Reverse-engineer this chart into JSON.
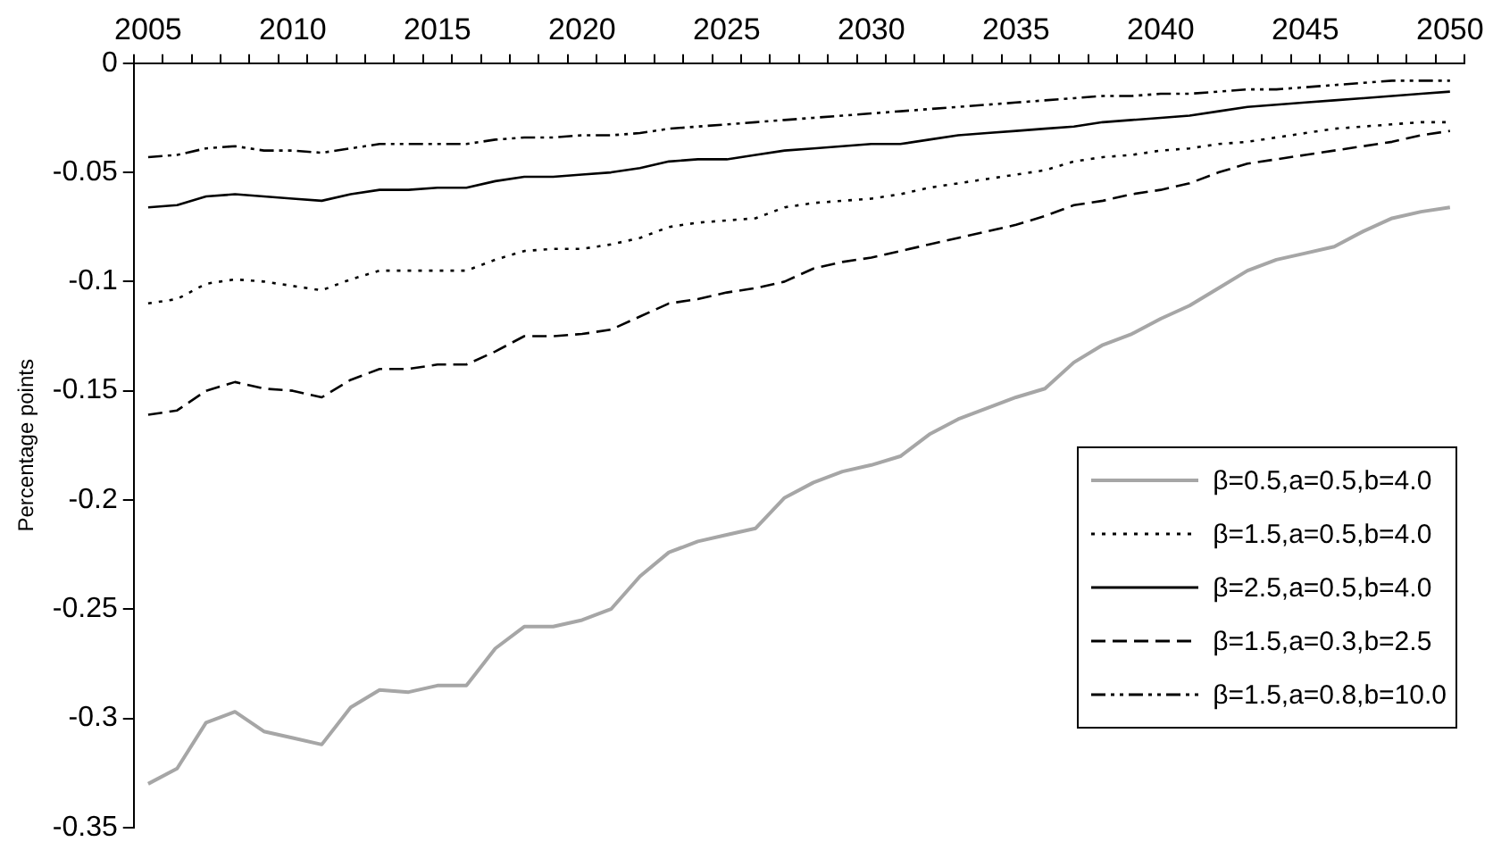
{
  "chart_data": {
    "type": "line",
    "ylabel": "Percentage points",
    "categories": [
      "2005",
      null,
      null,
      null,
      null,
      "2010",
      null,
      null,
      null,
      null,
      "2015",
      null,
      null,
      null,
      null,
      "2020",
      null,
      null,
      null,
      null,
      "2025",
      null,
      null,
      null,
      null,
      "2030",
      null,
      null,
      null,
      null,
      "2035",
      null,
      null,
      null,
      null,
      "2040",
      null,
      null,
      null,
      null,
      "2045",
      null,
      null,
      null,
      null,
      "2050"
    ],
    "ylim": [
      -0.35,
      0
    ],
    "yticks": [
      0,
      -0.05,
      -0.1,
      -0.15,
      -0.2,
      -0.25,
      -0.3,
      -0.35
    ],
    "grid": false,
    "legend": "right",
    "marker": "none",
    "series": [
      {
        "name": "β=0.5,a=0.5,b=4.0",
        "color": "#a6a6a6",
        "line_style": "solid",
        "values": [
          -0.33,
          -0.323,
          -0.302,
          -0.297,
          -0.306,
          -0.309,
          -0.312,
          -0.295,
          -0.287,
          -0.288,
          -0.285,
          -0.285,
          -0.268,
          -0.258,
          -0.258,
          -0.255,
          -0.25,
          -0.235,
          -0.224,
          -0.219,
          -0.216,
          -0.213,
          -0.199,
          -0.192,
          -0.187,
          -0.184,
          -0.18,
          -0.17,
          -0.163,
          -0.158,
          -0.153,
          -0.149,
          -0.137,
          -0.129,
          -0.124,
          -0.117,
          -0.111,
          -0.103,
          -0.095,
          -0.09,
          -0.087,
          -0.084,
          -0.077,
          -0.071,
          -0.068,
          -0.066
        ]
      },
      {
        "name": "β=1.5,a=0.5,b=4.0",
        "color": "#000000",
        "line_style": "dotted",
        "values": [
          -0.11,
          -0.108,
          -0.101,
          -0.099,
          -0.1,
          -0.102,
          -0.104,
          -0.099,
          -0.095,
          -0.095,
          -0.095,
          -0.095,
          -0.09,
          -0.086,
          -0.085,
          -0.085,
          -0.083,
          -0.08,
          -0.075,
          -0.073,
          -0.072,
          -0.071,
          -0.066,
          -0.064,
          -0.063,
          -0.062,
          -0.06,
          -0.057,
          -0.055,
          -0.053,
          -0.051,
          -0.049,
          -0.045,
          -0.043,
          -0.042,
          -0.04,
          -0.039,
          -0.037,
          -0.036,
          -0.034,
          -0.032,
          -0.03,
          -0.029,
          -0.028,
          -0.027,
          -0.027
        ]
      },
      {
        "name": "β=2.5,a=0.5,b=4.0",
        "color": "#000000",
        "line_style": "solid",
        "values": [
          -0.066,
          -0.065,
          -0.061,
          -0.06,
          -0.061,
          -0.062,
          -0.063,
          -0.06,
          -0.058,
          -0.058,
          -0.057,
          -0.057,
          -0.054,
          -0.052,
          -0.052,
          -0.051,
          -0.05,
          -0.048,
          -0.045,
          -0.044,
          -0.044,
          -0.042,
          -0.04,
          -0.039,
          -0.038,
          -0.037,
          -0.037,
          -0.035,
          -0.033,
          -0.032,
          -0.031,
          -0.03,
          -0.029,
          -0.027,
          -0.026,
          -0.025,
          -0.024,
          -0.022,
          -0.02,
          -0.019,
          -0.018,
          -0.017,
          -0.016,
          -0.015,
          -0.014,
          -0.013
        ]
      },
      {
        "name": "β=1.5,a=0.3,b=2.5",
        "color": "#000000",
        "line_style": "dashed",
        "values": [
          -0.161,
          -0.159,
          -0.15,
          -0.146,
          -0.149,
          -0.15,
          -0.153,
          -0.145,
          -0.14,
          -0.14,
          -0.138,
          -0.138,
          -0.132,
          -0.125,
          -0.125,
          -0.124,
          -0.122,
          -0.116,
          -0.11,
          -0.108,
          -0.105,
          -0.103,
          -0.1,
          -0.094,
          -0.091,
          -0.089,
          -0.086,
          -0.083,
          -0.08,
          -0.077,
          -0.074,
          -0.07,
          -0.065,
          -0.063,
          -0.06,
          -0.058,
          -0.055,
          -0.05,
          -0.046,
          -0.044,
          -0.042,
          -0.04,
          -0.038,
          -0.036,
          -0.033,
          -0.031
        ]
      },
      {
        "name": "β=1.5,a=0.8,b=10.0",
        "color": "#000000",
        "line_style": "dashdot",
        "values": [
          -0.043,
          -0.042,
          -0.039,
          -0.038,
          -0.04,
          -0.04,
          -0.041,
          -0.039,
          -0.037,
          -0.037,
          -0.037,
          -0.037,
          -0.035,
          -0.034,
          -0.034,
          -0.033,
          -0.033,
          -0.032,
          -0.03,
          -0.029,
          -0.028,
          -0.027,
          -0.026,
          -0.025,
          -0.024,
          -0.023,
          -0.022,
          -0.021,
          -0.02,
          -0.019,
          -0.018,
          -0.017,
          -0.016,
          -0.015,
          -0.015,
          -0.014,
          -0.014,
          -0.013,
          -0.012,
          -0.012,
          -0.011,
          -0.01,
          -0.009,
          -0.008,
          -0.008,
          -0.008
        ]
      }
    ]
  }
}
